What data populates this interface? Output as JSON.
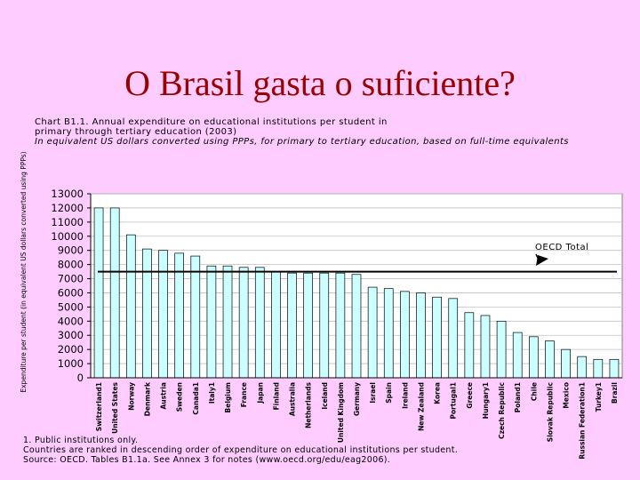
{
  "slide": {
    "title": "O Brasil gasta o suficiente?"
  },
  "chart_data": {
    "type": "bar",
    "title": "Chart B1.1. Annual expenditure on educational institutions per student in primary through tertiary education (2003)",
    "title_line1": "Chart B1.1. Annual expenditure on educational institutions per student in",
    "title_line2": "primary through tertiary education (2003)",
    "subtitle": "In equivalent US dollars converted using PPPs, for primary to tertiary education, based on full-time equivalents",
    "ylabel": "Expenditure per student (in equivalent US dollars converted using PPPs)",
    "xlabel": "",
    "ylim": [
      0,
      13000
    ],
    "yticks": [
      0,
      1000,
      2000,
      3000,
      4000,
      5000,
      6000,
      7000,
      8000,
      9000,
      10000,
      11000,
      12000,
      13000
    ],
    "grid": true,
    "bar_color": "#ccffff",
    "categories": [
      "Switzerland1",
      "United States",
      "Norway",
      "Denmark",
      "Austria",
      "Sweden",
      "Canada1",
      "Italy1",
      "Belgium",
      "France",
      "Japan",
      "Finland",
      "Australia",
      "Netherlands",
      "Iceland",
      "United Kingdom",
      "Germany",
      "Israel",
      "Spain",
      "Ireland",
      "New Zealand",
      "Korea",
      "Portugal1",
      "Greece",
      "Hungary1",
      "Czech Republic",
      "Poland1",
      "Chile",
      "Slovak Republic",
      "Mexico",
      "Russian Federation1",
      "Turkey1",
      "Brazil"
    ],
    "values": [
      12000,
      12000,
      10100,
      9100,
      9000,
      8800,
      8600,
      7900,
      7900,
      7800,
      7800,
      7500,
      7400,
      7400,
      7400,
      7400,
      7300,
      6400,
      6300,
      6100,
      6000,
      5700,
      5600,
      4600,
      4400,
      4000,
      3200,
      2900,
      2600,
      2000,
      1500,
      1300,
      1300
    ],
    "reference_line": {
      "label": "OECD Total",
      "value": 7500
    }
  },
  "footer": {
    "note1": "1. Public institutions only.",
    "note2": "Countries are ranked in descending order of expenditure on educational institutions per student.",
    "source": "Source: OECD. Tables B1.1a. See Annex 3 for notes (www.oecd.org/edu/eag2006)."
  }
}
